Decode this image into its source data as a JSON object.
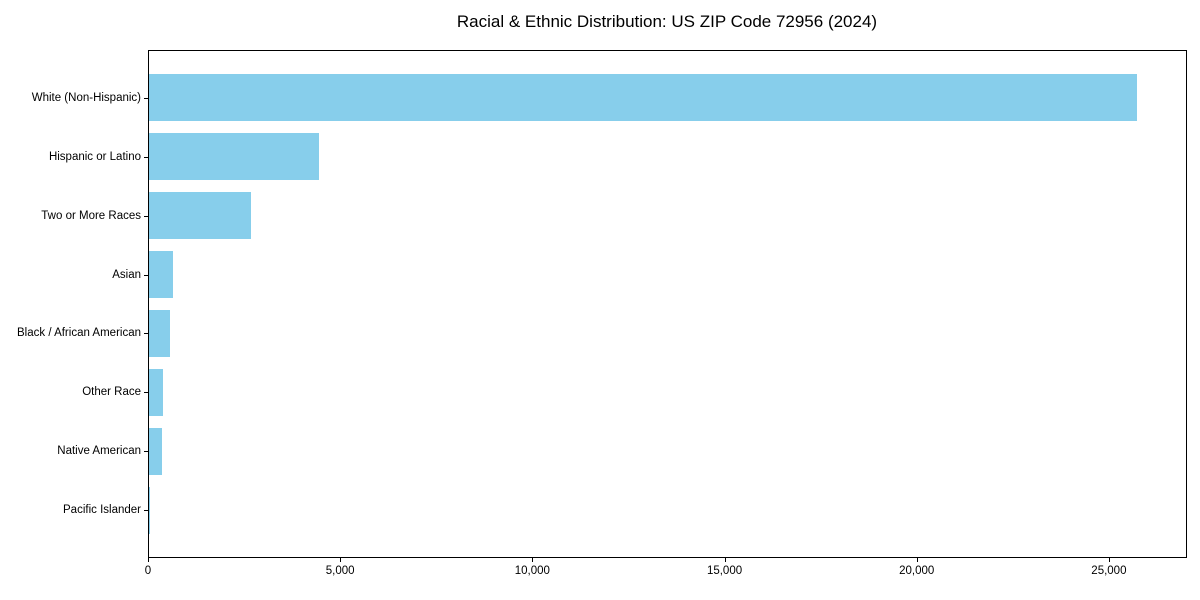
{
  "title": "Racial & Ethnic Distribution: US ZIP Code 72956 (2024)",
  "chart_data": {
    "type": "bar",
    "orientation": "horizontal",
    "title": "Racial & Ethnic Distribution: US ZIP Code 72956 (2024)",
    "categories": [
      "White (Non-Hispanic)",
      "Hispanic or Latino",
      "Two or More Races",
      "Asian",
      "Black / African American",
      "Other Race",
      "Native American",
      "Pacific Islander"
    ],
    "values": [
      25700,
      4420,
      2650,
      630,
      550,
      360,
      330,
      15
    ],
    "xlabel": "",
    "ylabel": "",
    "xlim": [
      0,
      26980
    ],
    "x_ticks": [
      0,
      5000,
      10000,
      15000,
      20000,
      25000
    ],
    "x_tick_labels": [
      "0",
      "5,000",
      "10,000",
      "15,000",
      "20,000",
      "25,000"
    ],
    "bar_color": "#87CEEB",
    "bar_rel_height": 0.8,
    "y_margin_frac": 0.05,
    "grid": false,
    "legend": null
  }
}
